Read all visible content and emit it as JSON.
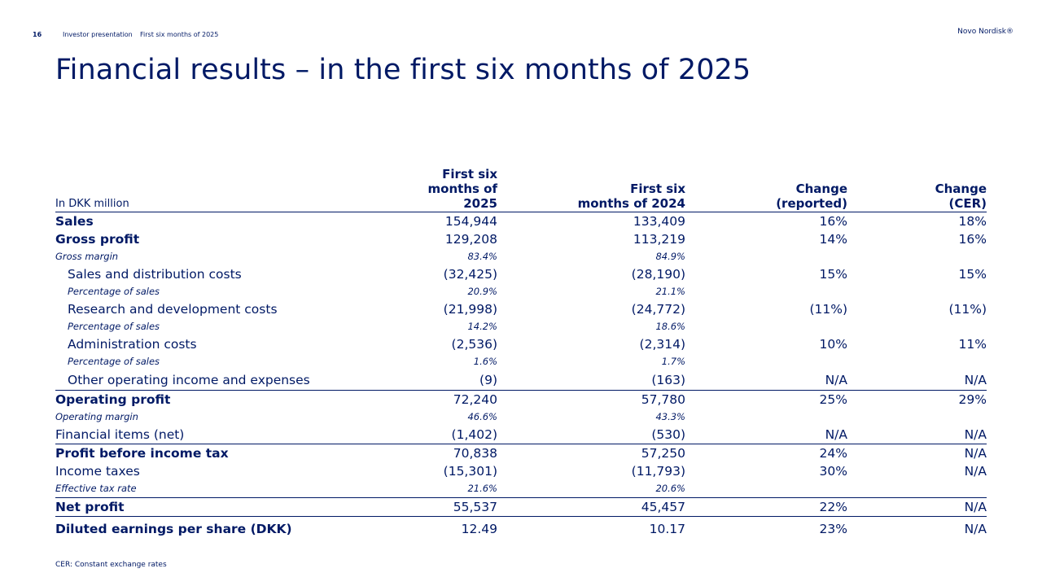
{
  "header": {
    "page_number": "16",
    "breadcrumb": [
      "Investor presentation",
      "First six months of 2025"
    ],
    "brand": "Novo Nordisk®"
  },
  "title": "Financial results – in the first six months of 2025",
  "table": {
    "unit_label": "In DKK million",
    "columns": [
      {
        "line1": "First six",
        "line2": "months of 2025"
      },
      {
        "line1": "First six",
        "line2": "months of 2024"
      },
      {
        "line1": "Change",
        "line2": "(reported)"
      },
      {
        "line1": "Change",
        "line2": "(CER)"
      }
    ],
    "rows": [
      {
        "label": "Sales",
        "v2025": "154,944",
        "v2024": "133,409",
        "change_reported": "16%",
        "change_cer": "18%"
      },
      {
        "label": "Gross profit",
        "v2025": "129,208",
        "v2024": "113,219",
        "change_reported": "14%",
        "change_cer": "16%"
      },
      {
        "label": "Gross margin",
        "v2025": "83.4%",
        "v2024": "84.9%",
        "change_reported": "",
        "change_cer": ""
      },
      {
        "label": "Sales and distribution costs",
        "v2025": "(32,425)",
        "v2024": "(28,190)",
        "change_reported": "15%",
        "change_cer": "15%"
      },
      {
        "label": "Percentage of sales",
        "v2025": "20.9%",
        "v2024": "21.1%",
        "change_reported": "",
        "change_cer": ""
      },
      {
        "label": "Research and development costs",
        "v2025": "(21,998)",
        "v2024": "(24,772)",
        "change_reported": "(11%)",
        "change_cer": "(11%)"
      },
      {
        "label": "Percentage of sales",
        "v2025": "14.2%",
        "v2024": "18.6%",
        "change_reported": "",
        "change_cer": ""
      },
      {
        "label": "Administration costs",
        "v2025": "(2,536)",
        "v2024": "(2,314)",
        "change_reported": "10%",
        "change_cer": "11%"
      },
      {
        "label": "Percentage of sales",
        "v2025": "1.6%",
        "v2024": "1.7%",
        "change_reported": "",
        "change_cer": ""
      },
      {
        "label": "Other operating income and expenses",
        "v2025": "(9)",
        "v2024": "(163)",
        "change_reported": "N/A",
        "change_cer": "N/A"
      },
      {
        "label": "Operating profit",
        "v2025": "72,240",
        "v2024": "57,780",
        "change_reported": "25%",
        "change_cer": "29%"
      },
      {
        "label": "Operating margin",
        "v2025": "46.6%",
        "v2024": "43.3%",
        "change_reported": "",
        "change_cer": ""
      },
      {
        "label": "Financial items (net)",
        "v2025": "(1,402)",
        "v2024": "(530)",
        "change_reported": "N/A",
        "change_cer": "N/A"
      },
      {
        "label": "Profit before income tax",
        "v2025": "70,838",
        "v2024": "57,250",
        "change_reported": "24%",
        "change_cer": "N/A"
      },
      {
        "label": "Income taxes",
        "v2025": "(15,301)",
        "v2024": "(11,793)",
        "change_reported": "30%",
        "change_cer": "N/A"
      },
      {
        "label": "Effective tax rate",
        "v2025": "21.6%",
        "v2024": "20.6%",
        "change_reported": "",
        "change_cer": ""
      },
      {
        "label": "Net profit",
        "v2025": "55,537",
        "v2024": "45,457",
        "change_reported": "22%",
        "change_cer": "N/A"
      },
      {
        "label": "Diluted earnings per share (DKK)",
        "v2025": "12.49",
        "v2024": "10.17",
        "change_reported": "23%",
        "change_cer": "N/A"
      }
    ]
  },
  "footnote": "CER: Constant exchange rates"
}
